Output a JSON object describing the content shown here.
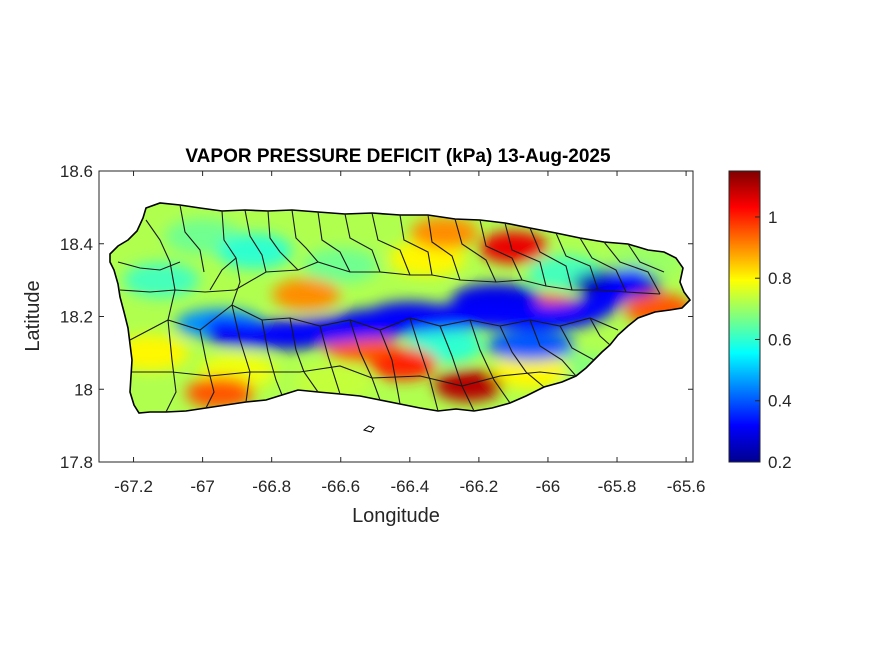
{
  "chart_data": {
    "type": "heatmap",
    "title": "VAPOR PRESSURE DEFICIT (kPa) 13-Aug-2025",
    "xlabel": "Longitude",
    "ylabel": "Latitude",
    "xlim": [
      -67.3,
      -65.58
    ],
    "ylim": [
      17.8,
      18.6
    ],
    "x_ticks": [
      -67.2,
      -67,
      -66.8,
      -66.6,
      -66.4,
      -66.2,
      -66,
      -65.8,
      -65.6
    ],
    "x_tick_labels": [
      "-67.2",
      "-67",
      "-66.8",
      "-66.6",
      "-66.4",
      "-66.2",
      "-66",
      "-65.8",
      "-65.6"
    ],
    "y_ticks": [
      17.8,
      18,
      18.2,
      18.4,
      18.6
    ],
    "y_tick_labels": [
      "17.8",
      "18",
      "18.2",
      "18.4",
      "18.6"
    ],
    "colorbar": {
      "colormap": "jet",
      "range": [
        0.2,
        1.15
      ],
      "ticks": [
        0.2,
        0.4,
        0.6,
        0.8,
        1
      ],
      "tick_labels": [
        "0.2",
        "0.4",
        "0.6",
        "0.8",
        "1"
      ]
    },
    "grid": false,
    "features": {
      "high_vpd_areas": [
        {
          "lon": -66.1,
          "lat": 18.39,
          "value": 1.05
        },
        {
          "lon": -66.23,
          "lat": 18.01,
          "value": 1.1
        },
        {
          "lon": -66.42,
          "lat": 18.07,
          "value": 1.0
        },
        {
          "lon": -66.55,
          "lat": 18.12,
          "value": 0.95
        },
        {
          "lon": -66.95,
          "lat": 17.99,
          "value": 0.95
        },
        {
          "lon": -66.0,
          "lat": 18.22,
          "value": 0.95
        },
        {
          "lon": -65.68,
          "lat": 18.22,
          "value": 0.95
        },
        {
          "lon": -66.3,
          "lat": 18.43,
          "value": 0.9
        },
        {
          "lon": -66.7,
          "lat": 18.26,
          "value": 0.9
        }
      ],
      "low_vpd_areas": [
        {
          "lon": -66.75,
          "lat": 18.15,
          "value": 0.25
        },
        {
          "lon": -66.5,
          "lat": 18.18,
          "value": 0.28
        },
        {
          "lon": -66.4,
          "lat": 18.2,
          "value": 0.3
        },
        {
          "lon": -66.15,
          "lat": 18.25,
          "value": 0.3
        },
        {
          "lon": -65.8,
          "lat": 18.29,
          "value": 0.25
        },
        {
          "lon": -66.95,
          "lat": 18.18,
          "value": 0.45
        },
        {
          "lon": -66.05,
          "lat": 18.12,
          "value": 0.4
        }
      ],
      "background_value": 0.72
    }
  }
}
